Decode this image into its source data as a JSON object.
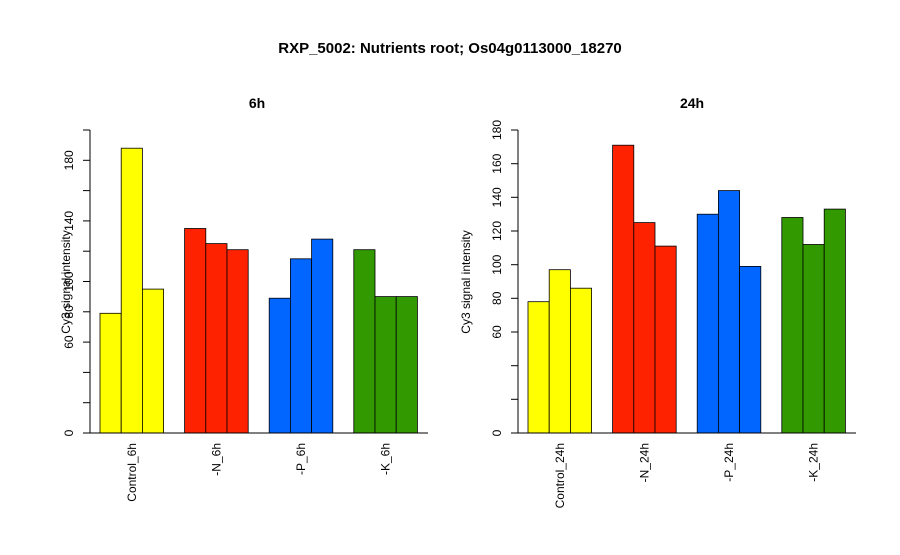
{
  "figure": {
    "title": "RXP_5002: Nutrients root; Os04g0113000_18270"
  },
  "chart_data": [
    {
      "type": "bar",
      "title": "6h",
      "ylabel": "Cy3 signal intensity",
      "xlabel": "",
      "ylim": [
        0,
        200
      ],
      "yticks": [
        0,
        60,
        80,
        100,
        140,
        180
      ],
      "grid": false,
      "legend": "none",
      "groups": [
        {
          "label": "Control_6h",
          "color": "#ffff00",
          "values": [
            79,
            188,
            95
          ]
        },
        {
          "label": "-N_6h",
          "color": "#ff2200",
          "values": [
            135,
            125,
            121
          ]
        },
        {
          "label": "-P_6h",
          "color": "#0066ff",
          "values": [
            89,
            115,
            128
          ]
        },
        {
          "label": "-K_6h",
          "color": "#339900",
          "values": [
            121,
            90,
            90
          ]
        }
      ]
    },
    {
      "type": "bar",
      "title": "24h",
      "ylabel": "Cy3 signal intensity",
      "xlabel": "",
      "ylim": [
        0,
        180
      ],
      "yticks": [
        0,
        60,
        80,
        100,
        120,
        140,
        160,
        180
      ],
      "grid": false,
      "legend": "none",
      "groups": [
        {
          "label": "Control_24h",
          "color": "#ffff00",
          "values": [
            78,
            97,
            86
          ]
        },
        {
          "label": "-N_24h",
          "color": "#ff2200",
          "values": [
            171,
            125,
            111
          ]
        },
        {
          "label": "-P_24h",
          "color": "#0066ff",
          "values": [
            130,
            144,
            99
          ]
        },
        {
          "label": "-K_24h",
          "color": "#339900",
          "values": [
            128,
            112,
            133
          ]
        }
      ]
    }
  ]
}
